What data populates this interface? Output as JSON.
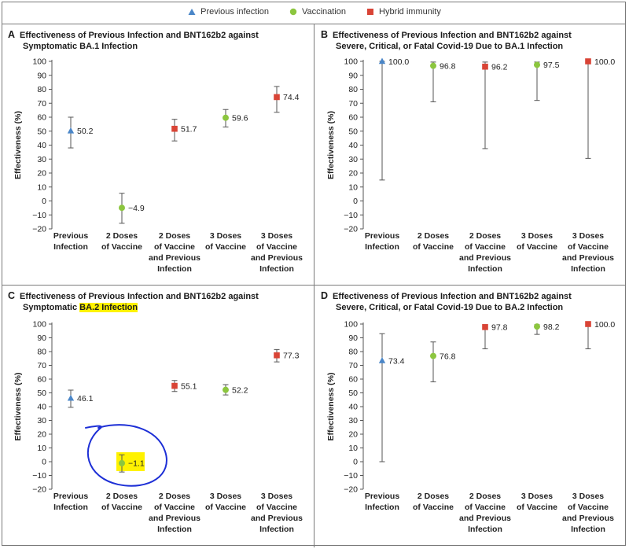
{
  "legend": [
    {
      "label": "Previous infection",
      "marker": "triangle",
      "color": "#4a86c8"
    },
    {
      "label": "Vaccination",
      "marker": "circle",
      "color": "#8cc63f"
    },
    {
      "label": "Hybrid immunity",
      "marker": "square",
      "color": "#d94436"
    }
  ],
  "panels": [
    {
      "letter": "A",
      "title": "Effectiveness of Previous Infection and BNT162b2 against",
      "subtitle": "Symptomatic BA.1 Infection",
      "subtitle_prefix": "",
      "subtitle_highlight": ""
    },
    {
      "letter": "B",
      "title": "Effectiveness of Previous Infection and BNT162b2 against",
      "subtitle": "Severe, Critical, or Fatal Covid-19 Due to BA.1 Infection",
      "subtitle_prefix": "",
      "subtitle_highlight": ""
    },
    {
      "letter": "C",
      "title": "Effectiveness of Previous Infection and BNT162b2 against",
      "subtitle": "",
      "subtitle_prefix": "Symptomatic ",
      "subtitle_highlight": "BA.2 Infection"
    },
    {
      "letter": "D",
      "title": "Effectiveness of Previous Infection and BNT162b2 against",
      "subtitle": "Severe, Critical, or Fatal Covid-19 Due to BA.2 Infection",
      "subtitle_prefix": "",
      "subtitle_highlight": ""
    }
  ],
  "chart_data": [
    {
      "type": "scatter",
      "title": "Effectiveness of Previous Infection and BNT162b2 against Symptomatic BA.1 Infection",
      "ylabel": "Effectiveness (%)",
      "ylim": [
        -20,
        100
      ],
      "yticks": [
        -20,
        -10,
        0,
        10,
        20,
        30,
        40,
        50,
        60,
        70,
        80,
        90,
        100
      ],
      "categories": [
        [
          "Previous",
          "Infection"
        ],
        [
          "2 Doses",
          "of Vaccine"
        ],
        [
          "2 Doses",
          "of Vaccine",
          "and Previous",
          "Infection"
        ],
        [
          "3 Doses",
          "of Vaccine"
        ],
        [
          "3 Doses",
          "of Vaccine",
          "and Previous",
          "Infection"
        ]
      ],
      "points": [
        {
          "value": 50.2,
          "label": "50.2",
          "low": 38,
          "high": 60,
          "marker": "triangle",
          "color": "#4a86c8"
        },
        {
          "value": -4.9,
          "label": "−4.9",
          "low": -16,
          "high": 5.5,
          "marker": "circle",
          "color": "#8cc63f"
        },
        {
          "value": 51.7,
          "label": "51.7",
          "low": 43,
          "high": 58.5,
          "marker": "square",
          "color": "#d94436"
        },
        {
          "value": 59.6,
          "label": "59.6",
          "low": 53,
          "high": 65.5,
          "marker": "circle",
          "color": "#8cc63f"
        },
        {
          "value": 74.4,
          "label": "74.4",
          "low": 63.5,
          "high": 82,
          "marker": "square",
          "color": "#d94436"
        }
      ]
    },
    {
      "type": "scatter",
      "title": "Effectiveness of Previous Infection and BNT162b2 against Severe, Critical, or Fatal Covid-19 Due to BA.1 Infection",
      "ylabel": "Effectiveness (%)",
      "ylim": [
        -20,
        100
      ],
      "yticks": [
        -20,
        -10,
        0,
        10,
        20,
        30,
        40,
        50,
        60,
        70,
        80,
        90,
        100
      ],
      "categories": [
        [
          "Previous",
          "Infection"
        ],
        [
          "2 Doses",
          "of Vaccine"
        ],
        [
          "2 Doses",
          "of Vaccine",
          "and Previous",
          "Infection"
        ],
        [
          "3 Doses",
          "of Vaccine"
        ],
        [
          "3 Doses",
          "of Vaccine",
          "and Previous",
          "Infection"
        ]
      ],
      "points": [
        {
          "value": 100.0,
          "label": "100.0",
          "low": 15,
          "high": 100,
          "marker": "triangle",
          "color": "#4a86c8"
        },
        {
          "value": 96.8,
          "label": "96.8",
          "low": 71,
          "high": 99.5,
          "marker": "circle",
          "color": "#8cc63f"
        },
        {
          "value": 96.2,
          "label": "96.2",
          "low": 37.5,
          "high": 99.5,
          "marker": "square",
          "color": "#d94436"
        },
        {
          "value": 97.5,
          "label": "97.5",
          "low": 72,
          "high": 99.5,
          "marker": "circle",
          "color": "#8cc63f"
        },
        {
          "value": 100.0,
          "label": "100.0",
          "low": 30.5,
          "high": 100,
          "marker": "square",
          "color": "#d94436"
        }
      ]
    },
    {
      "type": "scatter",
      "title": "Effectiveness of Previous Infection and BNT162b2 against Symptomatic BA.2 Infection",
      "ylabel": "Effectiveness (%)",
      "ylim": [
        -20,
        100
      ],
      "yticks": [
        -20,
        -10,
        0,
        10,
        20,
        30,
        40,
        50,
        60,
        70,
        80,
        90,
        100
      ],
      "categories": [
        [
          "Previous",
          "Infection"
        ],
        [
          "2 Doses",
          "of Vaccine"
        ],
        [
          "2 Doses",
          "of Vaccine",
          "and Previous",
          "Infection"
        ],
        [
          "3 Doses",
          "of Vaccine"
        ],
        [
          "3 Doses",
          "of Vaccine",
          "and Previous",
          "Infection"
        ]
      ],
      "points": [
        {
          "value": 46.1,
          "label": "46.1",
          "low": 39.5,
          "high": 52,
          "marker": "triangle",
          "color": "#4a86c8"
        },
        {
          "value": -1.1,
          "label": "−1.1",
          "low": -7.5,
          "high": 5,
          "marker": "circle",
          "color": "#8cc63f"
        },
        {
          "value": 55.1,
          "label": "55.1",
          "low": 51,
          "high": 59,
          "marker": "square",
          "color": "#d94436"
        },
        {
          "value": 52.2,
          "label": "52.2",
          "low": 48.5,
          "high": 56,
          "marker": "circle",
          "color": "#8cc63f"
        },
        {
          "value": 77.3,
          "label": "77.3",
          "low": 72.5,
          "high": 81.5,
          "marker": "square",
          "color": "#d94436"
        }
      ],
      "annotations": {
        "highlight_point": 1,
        "ink_color": "#1d2fd6",
        "highlight_color": "#fff200"
      }
    },
    {
      "type": "scatter",
      "title": "Effectiveness of Previous Infection and BNT162b2 against Severe, Critical, or Fatal Covid-19 Due to BA.2 Infection",
      "ylabel": "Effectiveness (%)",
      "ylim": [
        -20,
        100
      ],
      "yticks": [
        -20,
        -10,
        0,
        10,
        20,
        30,
        40,
        50,
        60,
        70,
        80,
        90,
        100
      ],
      "categories": [
        [
          "Previous",
          "Infection"
        ],
        [
          "2 Doses",
          "of Vaccine"
        ],
        [
          "2 Doses",
          "of Vaccine",
          "and Previous",
          "Infection"
        ],
        [
          "3 Doses",
          "of Vaccine"
        ],
        [
          "3 Doses",
          "of Vaccine",
          "and Previous",
          "Infection"
        ]
      ],
      "points": [
        {
          "value": 73.4,
          "label": "73.4",
          "low": 0,
          "high": 93,
          "marker": "triangle",
          "color": "#4a86c8"
        },
        {
          "value": 76.8,
          "label": "76.8",
          "low": 58,
          "high": 87,
          "marker": "circle",
          "color": "#8cc63f"
        },
        {
          "value": 97.8,
          "label": "97.8",
          "low": 82,
          "high": 99.5,
          "marker": "square",
          "color": "#d94436"
        },
        {
          "value": 98.2,
          "label": "98.2",
          "low": 92.5,
          "high": 99.5,
          "marker": "circle",
          "color": "#8cc63f"
        },
        {
          "value": 100.0,
          "label": "100.0",
          "low": 82,
          "high": 100,
          "marker": "square",
          "color": "#d94436"
        }
      ]
    }
  ]
}
